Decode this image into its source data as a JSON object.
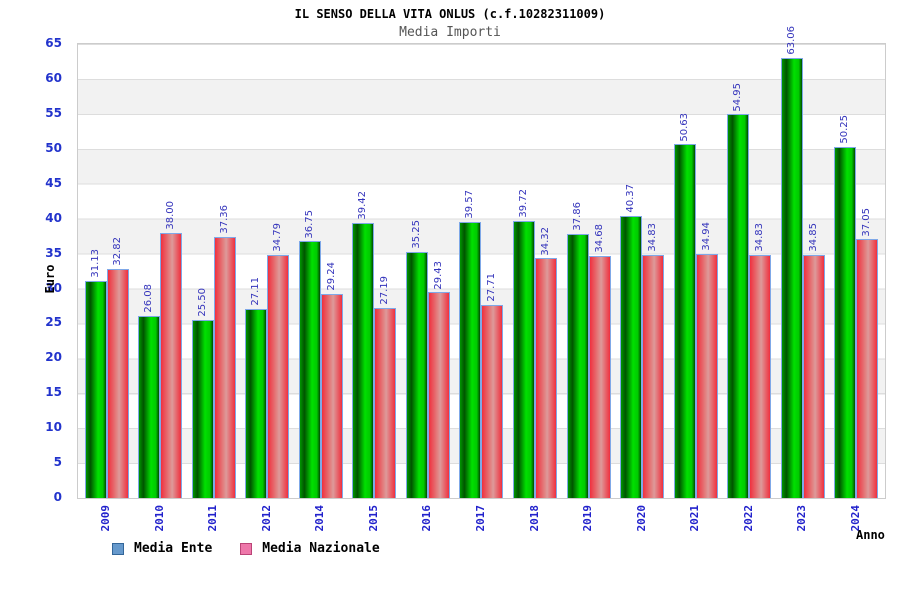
{
  "header": {
    "title": "IL SENSO DELLA VITA ONLUS (c.f.10282311009)",
    "subtitle": "Media Importi"
  },
  "chart_data": {
    "type": "bar",
    "title": "IL SENSO DELLA VITA ONLUS (c.f.10282311009)",
    "subtitle": "Media Importi",
    "xlabel": "Anno",
    "ylabel": "Euro",
    "ylim": [
      0,
      65
    ],
    "ytick_step": 5,
    "grid": "horizontal-bands",
    "legend_position": "bottom-left",
    "categories": [
      "2009",
      "2010",
      "2011",
      "2012",
      "2014",
      "2015",
      "2016",
      "2017",
      "2018",
      "2019",
      "2020",
      "2021",
      "2022",
      "2023",
      "2024"
    ],
    "series": [
      {
        "name": "Media Ente",
        "bar_color": "#00cc00",
        "legend_swatch_color": "#6699cc",
        "values": [
          31.13,
          26.08,
          25.5,
          27.11,
          36.75,
          39.42,
          35.25,
          39.57,
          39.72,
          37.86,
          40.37,
          50.63,
          54.95,
          63.06,
          50.25
        ]
      },
      {
        "name": "Media Nazionale",
        "bar_color": "#ee3344",
        "legend_swatch_color": "#ee77aa",
        "values": [
          32.82,
          38.0,
          37.36,
          34.79,
          29.24,
          27.19,
          29.43,
          27.71,
          34.32,
          34.68,
          34.83,
          34.94,
          34.83,
          34.85,
          37.05
        ]
      }
    ]
  },
  "legend": {
    "items": [
      {
        "label": "Media Ente",
        "swatch": "#6699cc"
      },
      {
        "label": "Media Nazionale",
        "swatch": "#ee77aa"
      }
    ]
  },
  "colors": {
    "tick_label": "#2233cc",
    "value_label": "#3333bb",
    "band": "#f2f2f2",
    "gridline": "#dddddd",
    "bar_border": "#7fa8e8",
    "subtitle": "#555555"
  }
}
